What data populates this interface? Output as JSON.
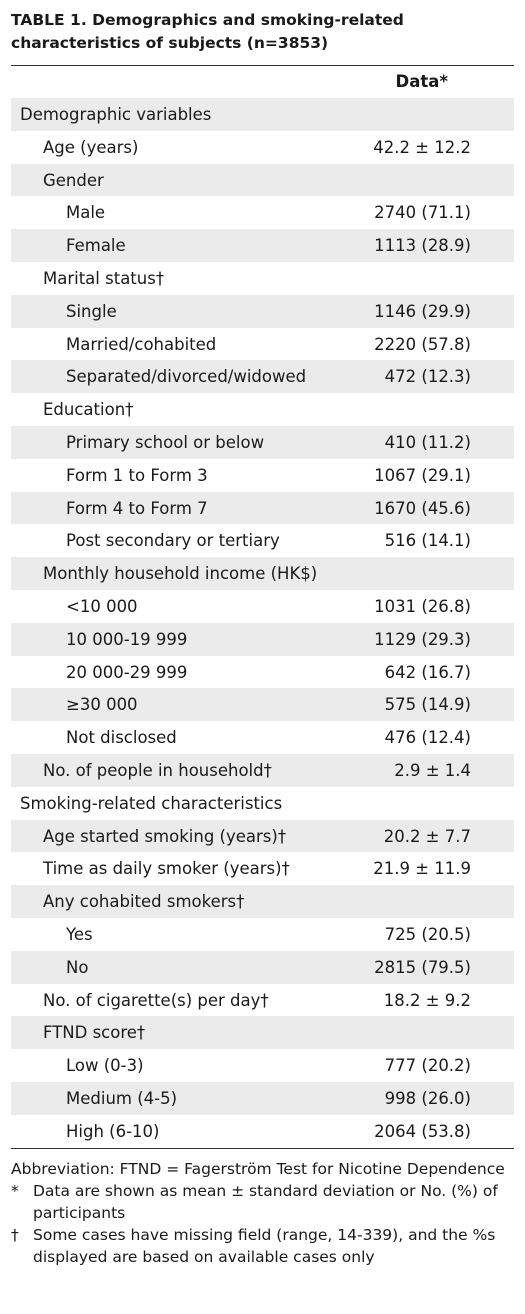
{
  "header": {
    "title": "TABLE 1. Demographics and smoking-related characteristics of subjects (n=3853)"
  },
  "table": {
    "columns": [
      "",
      "Data*"
    ],
    "rows": [
      [
        "Demographic variables"
      ],
      [
        "Age (years)",
        "42.2 ± 12.2"
      ],
      [
        "Gender"
      ],
      [
        "Male",
        "2740 (71.1)"
      ],
      [
        "Female",
        "1113 (28.9)"
      ],
      [
        "Marital status†"
      ],
      [
        "Single",
        "1146 (29.9)"
      ],
      [
        "Married/cohabited",
        "2220 (57.8)"
      ],
      [
        "Separated/divorced/widowed",
        "472 (12.3)"
      ],
      [
        "Education†"
      ],
      [
        "Primary school or below",
        "410 (11.2)"
      ],
      [
        "Form 1 to Form 3",
        "1067 (29.1)"
      ],
      [
        "Form 4 to Form 7",
        "1670 (45.6)"
      ],
      [
        "Post secondary or tertiary",
        "516 (14.1)"
      ],
      [
        "Monthly household income (HK$)"
      ],
      [
        "<10 000",
        "1031 (26.8)"
      ],
      [
        "10 000-19 999",
        "1129 (29.3)"
      ],
      [
        "20 000-29 999",
        "642 (16.7)"
      ],
      [
        "≥30 000",
        "575 (14.9)"
      ],
      [
        "Not disclosed",
        "476 (12.4)"
      ],
      [
        "No. of people in household†",
        "2.9 ± 1.4"
      ],
      [
        "Smoking-related characteristics"
      ],
      [
        "Age started smoking (years)†",
        "20.2 ± 7.7"
      ],
      [
        "Time as daily smoker (years)†",
        "21.9 ± 11.9"
      ],
      [
        "Any cohabited smokers†"
      ],
      [
        "Yes",
        "725 (20.5)"
      ],
      [
        "No",
        "2815 (79.5)"
      ],
      [
        "No. of cigarette(s) per day†",
        "18.2 ± 9.2"
      ],
      [
        "FTND score†"
      ],
      [
        "Low (0-3)",
        "777 (20.2)"
      ],
      [
        "Medium (4-5)",
        "998 (26.0)"
      ],
      [
        "High (6-10)",
        "2064 (53.8)"
      ]
    ]
  },
  "footnotes": [
    {
      "text": "Abbreviation: FTND =  Fagerström Test for Nicotine Dependence"
    },
    {
      "mark": "*",
      "text": "Data are shown as mean ± standard deviation or No. (%) of participants"
    },
    {
      "mark": "†",
      "text": "Some cases have missing field (range, 14-339), and the %s displayed are based on available cases only"
    }
  ]
}
